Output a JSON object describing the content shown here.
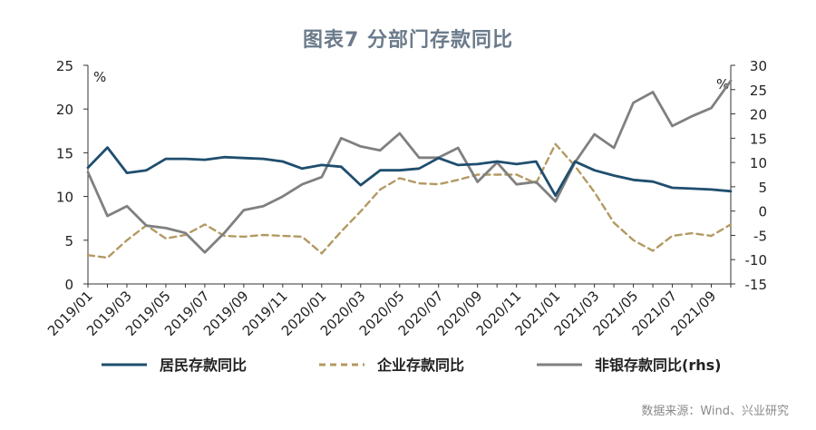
{
  "chart_data": {
    "type": "line",
    "title": "图表7  分部门存款同比",
    "source": "数据来源：Wind、兴业研究",
    "y_left": {
      "unit": "%",
      "range": [
        0,
        25
      ],
      "ticks": [
        0,
        5,
        10,
        15,
        20,
        25
      ]
    },
    "y_right": {
      "unit": "%",
      "range": [
        -15,
        30
      ],
      "ticks": [
        -15,
        -10,
        -5,
        0,
        5,
        10,
        15,
        20,
        25,
        30
      ]
    },
    "x": [
      "2019/01",
      "2019/02",
      "2019/03",
      "2019/04",
      "2019/05",
      "2019/06",
      "2019/07",
      "2019/08",
      "2019/09",
      "2019/10",
      "2019/11",
      "2019/12",
      "2020/01",
      "2020/02",
      "2020/03",
      "2020/04",
      "2020/05",
      "2020/06",
      "2020/07",
      "2020/08",
      "2020/09",
      "2020/10",
      "2020/11",
      "2020/12",
      "2021/01",
      "2021/02",
      "2021/03",
      "2021/04",
      "2021/05",
      "2021/06",
      "2021/07",
      "2021/08",
      "2021/09",
      "2021/10"
    ],
    "x_tick_labels": [
      "2019/01",
      "2019/03",
      "2019/05",
      "2019/07",
      "2019/09",
      "2019/11",
      "2020/01",
      "2020/03",
      "2020/05",
      "2020/07",
      "2020/09",
      "2020/11",
      "2021/01",
      "2021/03",
      "2021/05",
      "2021/07",
      "2021/09"
    ],
    "series": [
      {
        "name": "居民存款同比",
        "axis": "left",
        "color": "#1f4e6e",
        "style": "solid",
        "values": [
          13.3,
          15.6,
          12.7,
          13.0,
          14.3,
          14.3,
          14.2,
          14.5,
          14.4,
          14.3,
          14.0,
          13.2,
          13.6,
          13.4,
          11.3,
          13.0,
          13.0,
          13.2,
          14.4,
          13.6,
          13.7,
          14.0,
          13.7,
          14.0,
          10.1,
          14.0,
          13.0,
          12.4,
          11.9,
          11.7,
          11.0,
          10.9,
          10.8,
          10.6
        ]
      },
      {
        "name": "企业存款同比",
        "axis": "left",
        "color": "#b39a62",
        "style": "dashed",
        "values": [
          3.3,
          3.0,
          5.0,
          6.7,
          5.2,
          5.6,
          6.8,
          5.5,
          5.4,
          5.6,
          5.5,
          5.4,
          3.5,
          6.0,
          8.3,
          10.8,
          12.1,
          11.5,
          11.4,
          11.9,
          12.5,
          12.5,
          12.5,
          11.5,
          16.0,
          13.5,
          10.5,
          7.0,
          5.0,
          3.8,
          5.5,
          5.8,
          5.5,
          6.8
        ]
      },
      {
        "name": "非银存款同比(rhs)",
        "axis": "right",
        "color": "#808080",
        "style": "solid",
        "values": [
          8.0,
          -1.0,
          1.0,
          -3.0,
          -3.5,
          -4.5,
          -8.5,
          -4.5,
          0.2,
          1.0,
          3.0,
          5.5,
          7.0,
          15.0,
          13.3,
          12.5,
          16.0,
          11.0,
          11.0,
          13.0,
          6.0,
          10.0,
          5.5,
          6.0,
          2.0,
          10.0,
          15.8,
          13.0,
          22.3,
          24.5,
          17.5,
          19.5,
          21.2,
          26.8
        ]
      }
    ],
    "grid": false,
    "legend_position": "bottom"
  }
}
